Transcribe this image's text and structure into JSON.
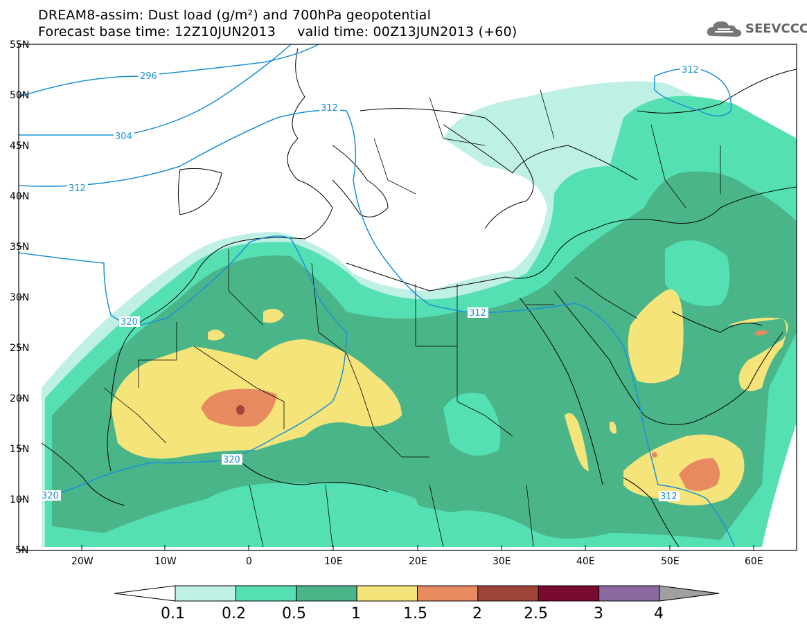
{
  "title": {
    "line1": "DREAM8-assim: Dust load (g/m²) and 700hPa geopotential",
    "line2": "Forecast base time: 12Z10JUN2013     valid time: 00Z13JUN2013 (+60)"
  },
  "logo": {
    "text": "SEEVCCC",
    "icon": "cloud-icon"
  },
  "axes": {
    "lat_labels": [
      "55N",
      "50N",
      "45N",
      "40N",
      "35N",
      "30N",
      "25N",
      "20N",
      "15N",
      "10N",
      "5N"
    ],
    "lon_labels": [
      "20W",
      "10W",
      "0",
      "10E",
      "20E",
      "30E",
      "40E",
      "50E",
      "60E"
    ]
  },
  "contour_labels": [
    "296",
    "304",
    "312",
    "312",
    "312",
    "312",
    "320",
    "320",
    "320",
    "312"
  ],
  "colorbar": {
    "labels": [
      "0.1",
      "0.2",
      "0.5",
      "1",
      "1.5",
      "2",
      "2.5",
      "3",
      "4"
    ],
    "colors": [
      "#bff0e6",
      "#55e0b3",
      "#4bb58a",
      "#f5e47a",
      "#e88a60",
      "#a0453a",
      "#7a0a30",
      "#8a6aa0",
      "#a0a0a0"
    ]
  },
  "colors": {
    "contour_line": "#1a8fd8",
    "border_line": "#000000"
  }
}
